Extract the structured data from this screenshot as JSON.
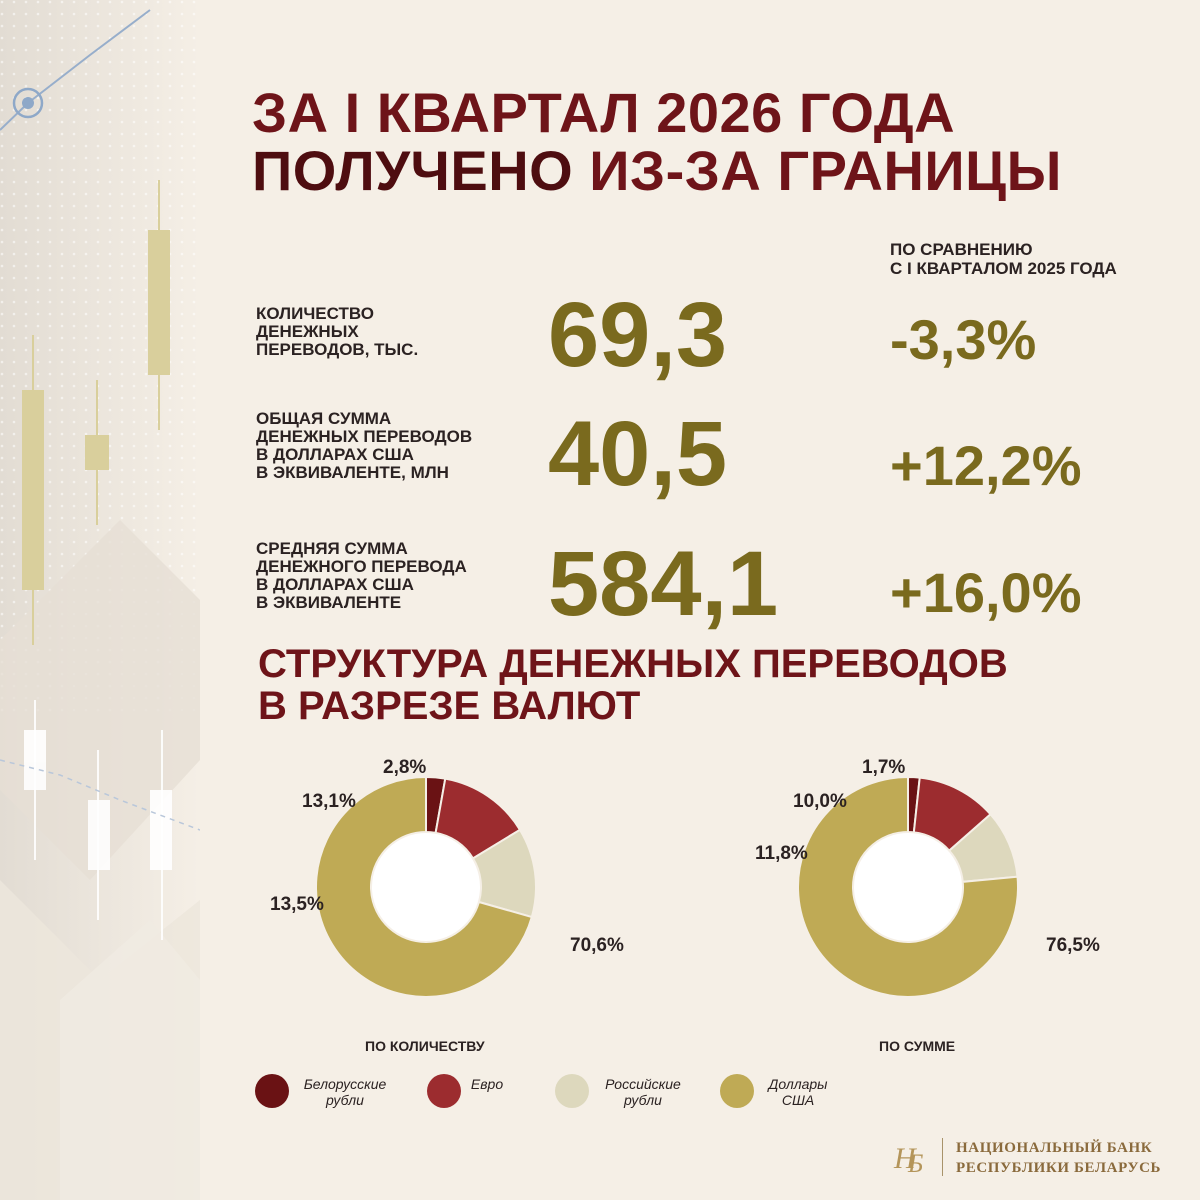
{
  "header": {
    "line1": "ЗА I КВАРТАЛ 2026 ГОДА",
    "line2_strong": "ПОЛУЧЕНО",
    "line2_rest": " ИЗ-ЗА ГРАНИЦЫ"
  },
  "comparison_header": "ПО СРАВНЕНИЮ\nС I КВАРТАЛОМ 2025 ГОДА",
  "metrics": [
    {
      "label": "КОЛИЧЕСТВО\nДЕНЕЖНЫХ\nПЕРЕВОДОВ, ТЫС.",
      "value": "69,3",
      "change": "-3,3%"
    },
    {
      "label": "ОБЩАЯ СУММА\nДЕНЕЖНЫХ ПЕРЕВОДОВ\nВ ДОЛЛАРАХ США\nВ ЭКВИВАЛЕНТЕ, МЛН",
      "value": "40,5",
      "change": "+12,2%"
    },
    {
      "label": "СРЕДНЯЯ СУММА\nДЕНЕЖНОГО ПЕРЕВОДА\nВ ДОЛЛАРАХ США\nВ ЭКВИВАЛЕНТЕ",
      "value": "584,1",
      "change": "+16,0%"
    }
  ],
  "section_title": "СТРУКТУРА ДЕНЕЖНЫХ ПЕРЕВОДОВ\nВ РАЗРЕЗЕ ВАЛЮТ",
  "chart_data": [
    {
      "type": "pie",
      "donut": true,
      "title": "ПО КОЛИЧЕСТВУ",
      "categories": [
        "Белорусские рубли",
        "Евро",
        "Российские рубли",
        "Доллары США"
      ],
      "values": [
        2.8,
        13.5,
        13.1,
        70.6
      ],
      "data_labels": [
        "2,8%",
        "13,5%",
        "13,1%",
        "70,6%"
      ]
    },
    {
      "type": "pie",
      "donut": true,
      "title": "ПО СУММЕ",
      "categories": [
        "Белорусские рубли",
        "Евро",
        "Российские рубли",
        "Доллары США"
      ],
      "values": [
        1.7,
        11.8,
        10.0,
        76.5
      ],
      "data_labels": [
        "1,7%",
        "11,8%",
        "10,0%",
        "76,5%"
      ]
    }
  ],
  "legend": [
    {
      "label": "Белорусские\nрубли",
      "color": "#6a1214"
    },
    {
      "label": "Евро",
      "color": "#9c2c2f"
    },
    {
      "label": "Российские\nрубли",
      "color": "#ddd8bd"
    },
    {
      "label": "Доллары\nСША",
      "color": "#bfaa55"
    }
  ],
  "footer": {
    "org": "НАЦИОНАЛЬНЫЙ БАНК\nРЕСПУБЛИКИ БЕЛАРУСЬ",
    "logo_icon": "nbrb-monogram-icon"
  }
}
